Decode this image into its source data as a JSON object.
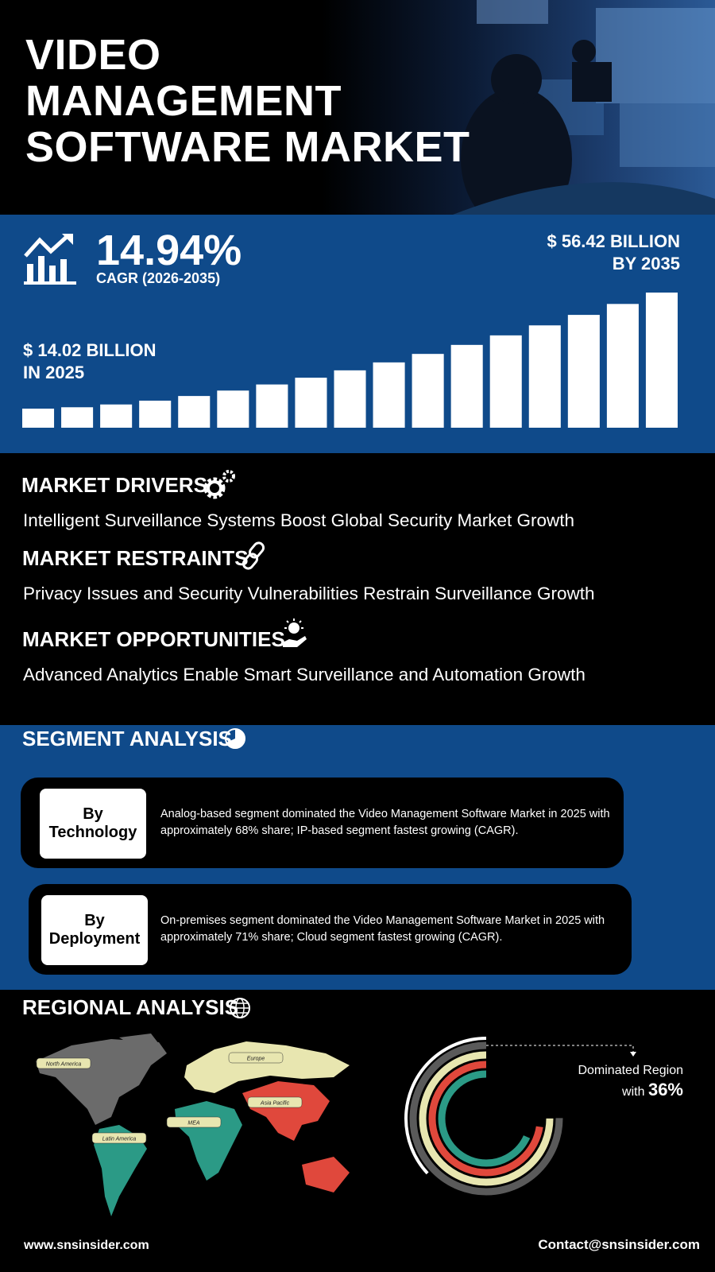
{
  "header": {
    "title_lines": [
      "VIDEO",
      "MANAGEMENT",
      "SOFTWARE MARKET"
    ]
  },
  "growth": {
    "cagr": "14.94%",
    "cagr_label": "CAGR (2026-2035)",
    "end_value": "$ 56.42 BILLION",
    "end_year": "BY 2035",
    "start_value": "$ 14.02 BILLION",
    "start_year": "IN 2025"
  },
  "dynamics": [
    {
      "heading": "MARKET DRIVERS",
      "text": "Intelligent Surveillance Systems Boost Global Security Market Growth"
    },
    {
      "heading": "MARKET RESTRAINTS",
      "text": "Privacy Issues and Security Vulnerabilities Restrain Surveillance Growth"
    },
    {
      "heading": "MARKET OPPORTUNITIES",
      "text": "Advanced Analytics Enable Smart Surveillance and Automation Growth"
    }
  ],
  "segments": {
    "heading": "SEGMENT ANALYSIS",
    "items": [
      {
        "label_lines": [
          "By",
          "Technology"
        ],
        "text_lines": [
          "Analog-based segment dominated the Video Management Software Market in 2025 with",
          "approximately 68% share; IP-based segment fastest growing (CAGR)."
        ]
      },
      {
        "label_lines": [
          "By",
          "Deployment"
        ],
        "text_lines": [
          "On-premises segment dominated the Video Management Software Market in 2025 with",
          "approximately 71% share; Cloud segment fastest growing (CAGR)."
        ]
      }
    ]
  },
  "regional": {
    "heading": "REGIONAL ANALYSIS",
    "regions": [
      "North America",
      "Europe",
      "Asia Pacific",
      "MEA",
      "Latin America"
    ],
    "dominated_label_lines": [
      "Dominated Region",
      "with"
    ],
    "dominated_value": "36%"
  },
  "footer": {
    "website": "www.snsinsider.com",
    "contact": "Contact@snsinsider.com"
  }
}
